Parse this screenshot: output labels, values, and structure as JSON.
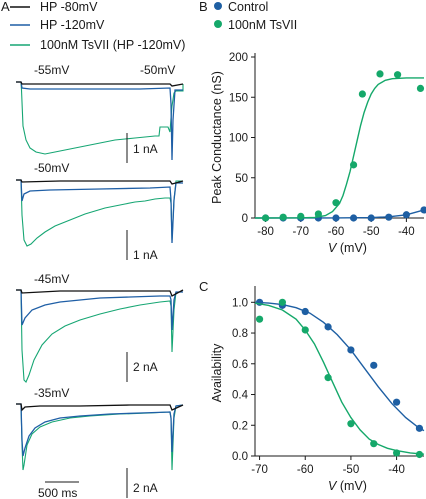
{
  "colors": {
    "hp80": "#111111",
    "hp120": "#1f5fa6",
    "tsvii": "#16a673",
    "control": "#1e5fa3",
    "toxin": "#15a86a"
  },
  "panel_labels": {
    "a": "A",
    "b": "B",
    "c": "C"
  },
  "legend_a": [
    "HP -80mV",
    "HP -120mV",
    "100nM TsVII (HP -120mV)"
  ],
  "legend_b": [
    "Control",
    "100nM TsVII"
  ],
  "traces": {
    "rows": [
      {
        "step": "-55mV",
        "step2": "-50mV",
        "scale": "1 nA"
      },
      {
        "step": "-50mV",
        "scale": "1 nA"
      },
      {
        "step": "-45mV",
        "scale": "2 nA"
      },
      {
        "step": "-35mV",
        "scale": "2 nA"
      }
    ],
    "time_scale": "500 ms"
  },
  "chart_data": [
    {
      "type": "scatter",
      "panel": "B",
      "xlabel_var": "V",
      "xlabel_unit": " (mV)",
      "ylabel": "Peak Conductance (nS)",
      "xlim": [
        -83,
        -35
      ],
      "ylim": [
        0,
        200
      ],
      "xticks": [
        -80,
        -70,
        -60,
        -50,
        -40
      ],
      "yticks": [
        0,
        50,
        100,
        150,
        200
      ],
      "series": [
        {
          "name": "Control",
          "x": [
            -80,
            -75,
            -70,
            -65,
            -60,
            -55,
            -50,
            -45,
            -40,
            -35
          ],
          "y": [
            0,
            0,
            0,
            0,
            0,
            0,
            0,
            1,
            4,
            10
          ],
          "fit": [
            [
              -83,
              0
            ],
            [
              -60,
              0.1
            ],
            [
              -50,
              0.5
            ],
            [
              -45,
              1.5
            ],
            [
              -40,
              4
            ],
            [
              -35,
              10
            ]
          ]
        },
        {
          "name": "100nM TsVII",
          "x": [
            -80,
            -75,
            -70,
            -65,
            -60,
            -55,
            -52.5,
            -47.5,
            -42.5,
            -36
          ],
          "y": [
            0,
            1,
            2,
            5,
            19,
            66,
            154,
            179,
            178,
            161
          ],
          "fit": [
            [
              -83,
              0
            ],
            [
              -70,
              0.2
            ],
            [
              -66,
              0.8
            ],
            [
              -63,
              3
            ],
            [
              -61,
              8
            ],
            [
              -59,
              18
            ],
            [
              -58,
              28
            ],
            [
              -57,
              42
            ],
            [
              -56,
              58
            ],
            [
              -55,
              77
            ],
            [
              -54,
              96
            ],
            [
              -53,
              115
            ],
            [
              -52,
              131
            ],
            [
              -51,
              144
            ],
            [
              -50,
              154
            ],
            [
              -49,
              161
            ],
            [
              -48,
              166
            ],
            [
              -46,
              171
            ],
            [
              -44,
              173
            ],
            [
              -40,
              174
            ],
            [
              -35,
              174
            ]
          ]
        }
      ]
    },
    {
      "type": "scatter",
      "panel": "C",
      "xlabel_var": "V",
      "xlabel_unit": " (mV)",
      "ylabel": "Availability",
      "xlim": [
        -71,
        -34
      ],
      "ylim": [
        0,
        1.08
      ],
      "xticks": [
        -70,
        -60,
        -50,
        -40
      ],
      "yticks": [
        0,
        0.2,
        0.4,
        0.6,
        0.8,
        1.0
      ],
      "ytick_labels": [
        "0.0",
        "0.2",
        "0.4",
        "0.6",
        "0.8",
        "1.0"
      ],
      "series": [
        {
          "name": "Control",
          "x": [
            -70,
            -65,
            -60,
            -55,
            -50,
            -45,
            -40,
            -35
          ],
          "y": [
            1.0,
            0.98,
            0.94,
            0.84,
            0.69,
            0.59,
            0.35,
            0.18
          ],
          "fit": [
            [
              -71,
              1.0
            ],
            [
              -68,
              0.995
            ],
            [
              -65,
              0.985
            ],
            [
              -62,
              0.965
            ],
            [
              -59,
              0.93
            ],
            [
              -56,
              0.87
            ],
            [
              -53,
              0.79
            ],
            [
              -50,
              0.69
            ],
            [
              -47,
              0.57
            ],
            [
              -44,
              0.45
            ],
            [
              -41,
              0.34
            ],
            [
              -38,
              0.25
            ],
            [
              -35,
              0.18
            ],
            [
              -34,
              0.165
            ]
          ]
        },
        {
          "name": "100nM TsVII",
          "x": [
            -70,
            -65,
            -60,
            -55,
            -50,
            -45,
            -40,
            -35
          ],
          "y": [
            0.89,
            1.0,
            0.82,
            0.51,
            0.21,
            0.08,
            0.02,
            0.01
          ],
          "fit": [
            [
              -71,
              0.995
            ],
            [
              -68,
              0.98
            ],
            [
              -65,
              0.95
            ],
            [
              -62,
              0.89
            ],
            [
              -60,
              0.82
            ],
            [
              -58,
              0.73
            ],
            [
              -56,
              0.61
            ],
            [
              -54,
              0.48
            ],
            [
              -52,
              0.35
            ],
            [
              -50,
              0.25
            ],
            [
              -48,
              0.17
            ],
            [
              -46,
              0.11
            ],
            [
              -44,
              0.075
            ],
            [
              -42,
              0.05
            ],
            [
              -40,
              0.035
            ],
            [
              -37,
              0.02
            ],
            [
              -34,
              0.012
            ]
          ]
        }
      ]
    }
  ]
}
